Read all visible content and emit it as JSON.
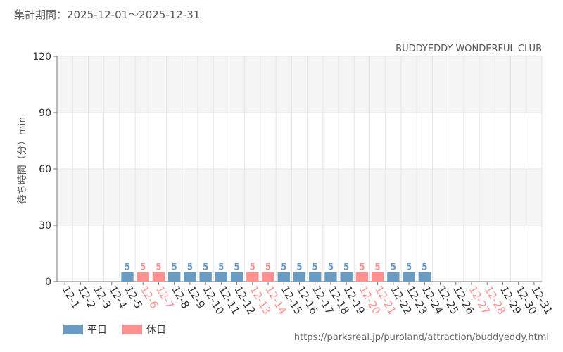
{
  "period_text": "集計期間：2025-12-01～2025-12-31",
  "source_url": "https://parksreal.jp/puroland/attraction/buddyeddy.html",
  "colors": {
    "weekday": "#6a9bc3",
    "holiday": "#ff9191",
    "band": "#f5f5f5",
    "grid": "#e6e6e6"
  },
  "legend": [
    {
      "label": "平日",
      "color": "#6a9bc3"
    },
    {
      "label": "休日",
      "color": "#ff9191"
    }
  ],
  "chart_data": {
    "type": "bar",
    "title": "BUDDYEDDY WONDERFUL CLUB",
    "xlabel": "",
    "ylabel": "待ち時間（分）min",
    "ylim": [
      0,
      120
    ],
    "yticks": [
      0,
      30,
      60,
      90,
      120
    ],
    "grid": true,
    "legend_position": "bottom-left",
    "categories": [
      "12-1",
      "12-2",
      "12-3",
      "12-4",
      "12-5",
      "12-6",
      "12-7",
      "12-8",
      "12-9",
      "12-10",
      "12-11",
      "12-12",
      "12-13",
      "12-14",
      "12-15",
      "12-16",
      "12-17",
      "12-18",
      "12-19",
      "12-20",
      "12-21",
      "12-22",
      "12-23",
      "12-24",
      "12-25",
      "12-26",
      "12-27",
      "12-28",
      "12-29",
      "12-30",
      "12-31"
    ],
    "values": [
      null,
      null,
      null,
      null,
      5,
      5,
      5,
      5,
      5,
      5,
      5,
      5,
      5,
      5,
      5,
      5,
      5,
      5,
      5,
      5,
      5,
      5,
      5,
      5,
      null,
      null,
      null,
      null,
      null,
      null,
      null
    ],
    "day_type": [
      "平日",
      "平日",
      "平日",
      "平日",
      "平日",
      "休日",
      "休日",
      "平日",
      "平日",
      "平日",
      "平日",
      "平日",
      "休日",
      "休日",
      "平日",
      "平日",
      "平日",
      "平日",
      "平日",
      "休日",
      "休日",
      "平日",
      "平日",
      "平日",
      "平日",
      "平日",
      "休日",
      "休日",
      "平日",
      "平日",
      "平日"
    ]
  }
}
